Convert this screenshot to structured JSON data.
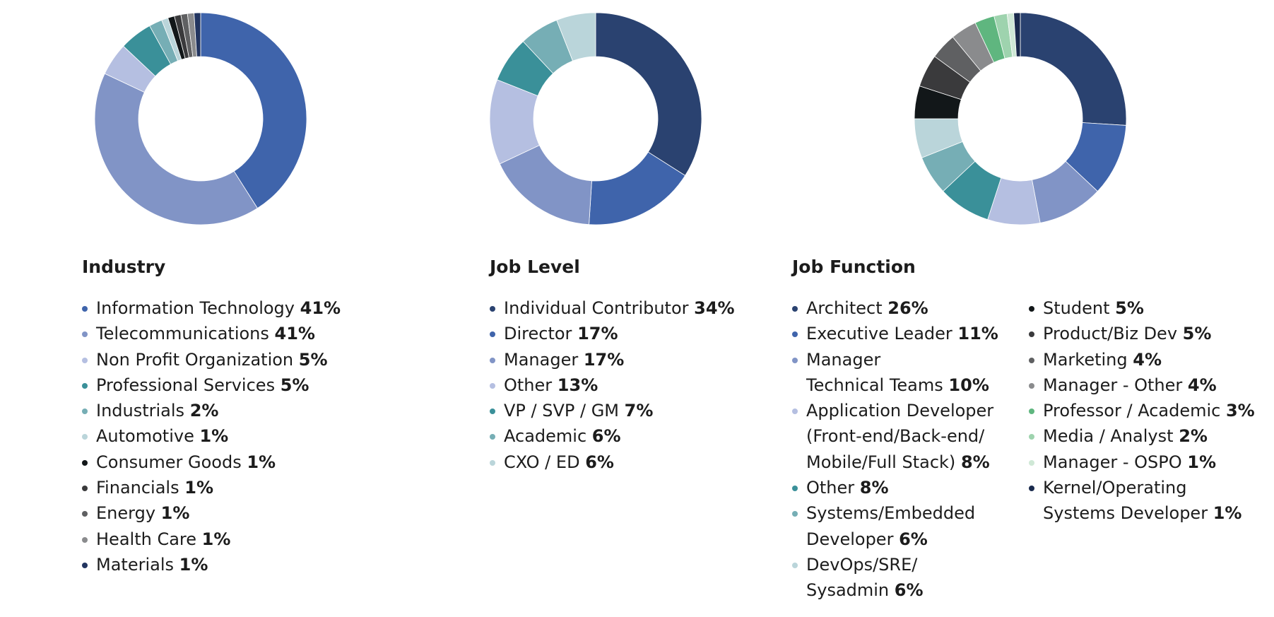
{
  "chart_data": [
    {
      "type": "pie",
      "id": "industry",
      "title": "Industry",
      "slices": [
        {
          "label": "Information Technology",
          "value": 41,
          "percent_text": "41%",
          "color": "#3f64ab"
        },
        {
          "label": "Telecommunications",
          "value": 41,
          "percent_text": "41%",
          "color": "#8194c6"
        },
        {
          "label": "Non Profit Organization",
          "value": 5,
          "percent_text": "5%",
          "color": "#b5bfe1"
        },
        {
          "label": "Professional Services",
          "value": 5,
          "percent_text": "5%",
          "color": "#3a9099"
        },
        {
          "label": "Industrials",
          "value": 2,
          "percent_text": "2%",
          "color": "#76aeb5"
        },
        {
          "label": "Automotive",
          "value": 1,
          "percent_text": "1%",
          "color": "#bad5da"
        },
        {
          "label": "Consumer Goods",
          "value": 1,
          "percent_text": "1%",
          "color": "#121719"
        },
        {
          "label": "Financials",
          "value": 1,
          "percent_text": "1%",
          "color": "#3a3a3c"
        },
        {
          "label": "Energy",
          "value": 1,
          "percent_text": "1%",
          "color": "#5f6062"
        },
        {
          "label": "Health Care",
          "value": 1,
          "percent_text": "1%",
          "color": "#8a8b8d"
        },
        {
          "label": "Materials",
          "value": 1,
          "percent_text": "1%",
          "color": "#223560"
        }
      ]
    },
    {
      "type": "pie",
      "id": "joblevel",
      "title": "Job Level",
      "slices": [
        {
          "label": "Individual Contributor",
          "value": 34,
          "percent_text": "34%",
          "color": "#2a4270"
        },
        {
          "label": "Director",
          "value": 17,
          "percent_text": "17%",
          "color": "#3f64ab"
        },
        {
          "label": "Manager",
          "value": 17,
          "percent_text": "17%",
          "color": "#8194c6"
        },
        {
          "label": "Other",
          "value": 13,
          "percent_text": "13%",
          "color": "#b5bfe1"
        },
        {
          "label": "VP / SVP / GM",
          "value": 7,
          "percent_text": "7%",
          "color": "#3a9099"
        },
        {
          "label": "Academic",
          "value": 6,
          "percent_text": "6%",
          "color": "#76aeb5"
        },
        {
          "label": "CXO / ED",
          "value": 6,
          "percent_text": "6%",
          "color": "#bad5da"
        }
      ]
    },
    {
      "type": "pie",
      "id": "jobfunction",
      "title": "Job Function",
      "slices": [
        {
          "label": "Architect",
          "lines": [
            "Architect"
          ],
          "value": 26,
          "percent_text": "26%",
          "color": "#2a4270"
        },
        {
          "label": "Executive Leader",
          "lines": [
            "Executive Leader"
          ],
          "value": 11,
          "percent_text": "11%",
          "color": "#3f64ab"
        },
        {
          "label": "Manager Technical Teams",
          "lines": [
            "Manager",
            "Technical Teams"
          ],
          "value": 10,
          "percent_text": "10%",
          "color": "#8194c6"
        },
        {
          "label": "Application Developer (Front-end/Back-end/ Mobile/Full Stack)",
          "lines": [
            "Application Developer",
            "(Front-end/Back-end/",
            "Mobile/Full Stack)"
          ],
          "value": 8,
          "percent_text": "8%",
          "color": "#b5bfe1"
        },
        {
          "label": "Other",
          "lines": [
            "Other"
          ],
          "value": 8,
          "percent_text": "8%",
          "color": "#3a9099"
        },
        {
          "label": "Systems/Embedded Developer",
          "lines": [
            "Systems/Embedded",
            "Developer"
          ],
          "value": 6,
          "percent_text": "6%",
          "color": "#76aeb5"
        },
        {
          "label": "DevOps/SRE/ Sysadmin",
          "lines": [
            "DevOps/SRE/",
            "Sysadmin"
          ],
          "value": 6,
          "percent_text": "6%",
          "color": "#bad5da"
        },
        {
          "label": "Student",
          "lines": [
            "Student"
          ],
          "value": 5,
          "percent_text": "5%",
          "color": "#121719"
        },
        {
          "label": "Product/Biz Dev",
          "lines": [
            "Product/Biz Dev"
          ],
          "value": 5,
          "percent_text": "5%",
          "color": "#3a3a3c"
        },
        {
          "label": "Marketing",
          "lines": [
            "Marketing"
          ],
          "value": 4,
          "percent_text": "4%",
          "color": "#5f6062"
        },
        {
          "label": "Manager - Other",
          "lines": [
            "Manager - Other"
          ],
          "value": 4,
          "percent_text": "4%",
          "color": "#8a8b8d"
        },
        {
          "label": "Professor / Academic",
          "lines": [
            "Professor / Academic"
          ],
          "value": 3,
          "percent_text": "3%",
          "color": "#5fb67f"
        },
        {
          "label": "Media / Analyst",
          "lines": [
            "Media / Analyst"
          ],
          "value": 2,
          "percent_text": "2%",
          "color": "#9ed3ae"
        },
        {
          "label": "Manager - OSPO",
          "lines": [
            "Manager - OSPO"
          ],
          "value": 1,
          "percent_text": "1%",
          "color": "#cfe8d6"
        },
        {
          "label": "Kernel/Operating Systems Developer",
          "lines": [
            "Kernel/Operating",
            "Systems Developer"
          ],
          "value": 1,
          "percent_text": "1%",
          "color": "#1a2a4d"
        }
      ]
    }
  ]
}
